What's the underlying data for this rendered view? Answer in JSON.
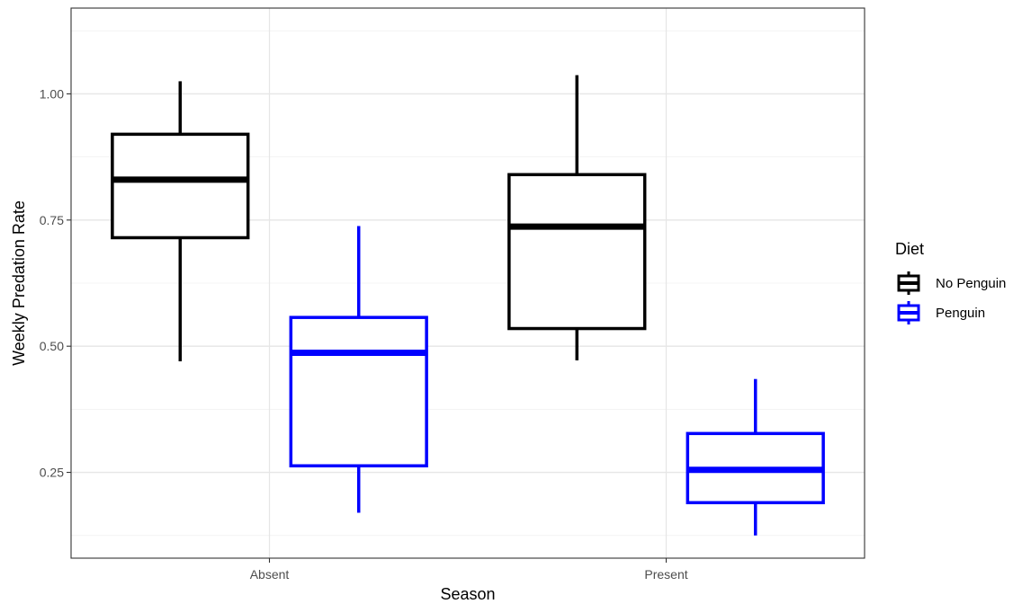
{
  "chart_data": {
    "type": "box",
    "xlabel": "Season",
    "ylabel": "Weekly Predation Rate",
    "categories": [
      "Absent",
      "Present"
    ],
    "ylim": [
      0.08,
      1.17
    ],
    "y_ticks": [
      0.25,
      0.5,
      0.75,
      1.0
    ],
    "y_tick_labels": [
      "0.25",
      "0.50",
      "0.75",
      "1.00"
    ],
    "grid": true,
    "legend": {
      "title": "Diet",
      "placement": "right"
    },
    "series": [
      {
        "name": "No Penguin",
        "color": "#000000",
        "boxes": [
          {
            "category": "Absent",
            "whisker_low": 0.47,
            "q1": 0.715,
            "median": 0.83,
            "q3": 0.92,
            "whisker_high": 1.025
          },
          {
            "category": "Present",
            "whisker_low": 0.472,
            "q1": 0.535,
            "median": 0.737,
            "q3": 0.84,
            "whisker_high": 1.037
          }
        ]
      },
      {
        "name": "Penguin",
        "color": "#0000ff",
        "boxes": [
          {
            "category": "Absent",
            "whisker_low": 0.17,
            "q1": 0.263,
            "median": 0.487,
            "q3": 0.557,
            "whisker_high": 0.738
          },
          {
            "category": "Present",
            "whisker_low": 0.125,
            "q1": 0.19,
            "median": 0.255,
            "q3": 0.327,
            "whisker_high": 0.435
          }
        ]
      }
    ]
  }
}
